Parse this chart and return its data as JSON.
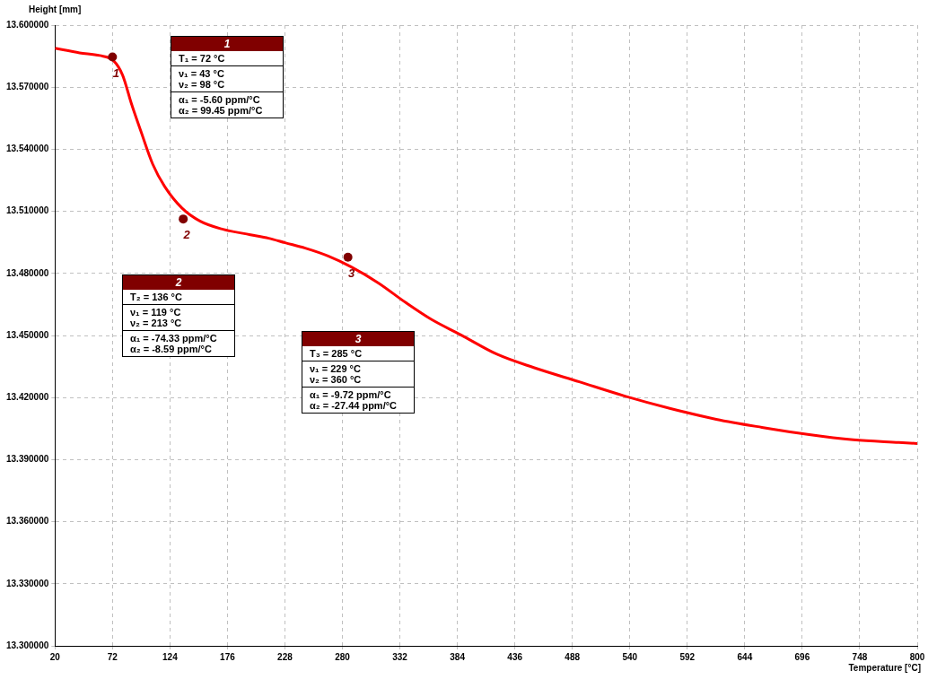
{
  "chart_data": {
    "type": "line",
    "xlabel": "Temperature [°C]",
    "ylabel": "Height [mm]",
    "xlim": [
      20,
      800
    ],
    "xticks": [
      20,
      72,
      124,
      176,
      228,
      280,
      332,
      384,
      436,
      488,
      540,
      592,
      644,
      696,
      748,
      800
    ],
    "ylim": [
      13.3,
      13.6
    ],
    "yticks": [
      {
        "value": 13.3,
        "label": "13.300000"
      },
      {
        "value": 13.33,
        "label": "13.330000"
      },
      {
        "value": 13.36,
        "label": "13.360000"
      },
      {
        "value": 13.39,
        "label": "13.390000"
      },
      {
        "value": 13.42,
        "label": "13.420000"
      },
      {
        "value": 13.45,
        "label": "13.450000"
      },
      {
        "value": 13.48,
        "label": "13.480000"
      },
      {
        "value": 13.51,
        "label": "13.510000"
      },
      {
        "value": 13.54,
        "label": "13.540000"
      },
      {
        "value": 13.57,
        "label": "13.570000"
      },
      {
        "value": 13.6,
        "label": "13.600000"
      }
    ],
    "grid": true,
    "legend": false,
    "marker": "none",
    "line_style": "solid",
    "series": [
      {
        "color": "#ff0000",
        "x": [
          20,
          42.3,
          60.5,
          72.9,
          81.1,
          89.4,
          97.7,
          108.4,
          119.2,
          134.8,
          151.4,
          172,
          196.8,
          213.3,
          228.2,
          246.4,
          267,
          287.7,
          312.5,
          337.3,
          360.4,
          386.8,
          419.9,
          453,
          494.3,
          535.6,
          576.9,
          618.2,
          659.5,
          700.8,
          742.1,
          783.4,
          800
        ],
        "values": [
          13.5888,
          13.5866,
          13.5853,
          13.5828,
          13.5759,
          13.5616,
          13.5487,
          13.5328,
          13.522,
          13.5116,
          13.5052,
          13.5013,
          13.4987,
          13.497,
          13.4948,
          13.4922,
          13.4884,
          13.4832,
          13.4754,
          13.4659,
          13.4578,
          13.4504,
          13.4409,
          13.4345,
          13.4276,
          13.4207,
          13.4147,
          13.4095,
          13.4056,
          13.4022,
          13.3996,
          13.3983,
          13.3978
        ]
      }
    ],
    "annotations": [
      {
        "text": "1",
        "x": 72,
        "y": 13.5846
      },
      {
        "text": "2",
        "x": 136,
        "y": 13.5063
      },
      {
        "text": "3",
        "x": 285,
        "y": 13.4878
      },
      "1\nT₁ = 72 °C\nν₁ = 43 °C\nν₂ = 98 °C\nα₁ = -5.60 ppm/°C\nα₂ = 99.45 ppm/°C",
      "2\nT₂ = 136 °C\nν₁ = 119 °C\nν₂ = 213 °C\nα₁ = -74.33 ppm/°C\nα₂ = -8.59 ppm/°C",
      "3\nT₃ = 285 °C\nν₁ = 229 °C\nν₂ = 360 °C\nα₁ = -9.72 ppm/°C\nα₂ = -27.44 ppm/°C"
    ]
  }
}
